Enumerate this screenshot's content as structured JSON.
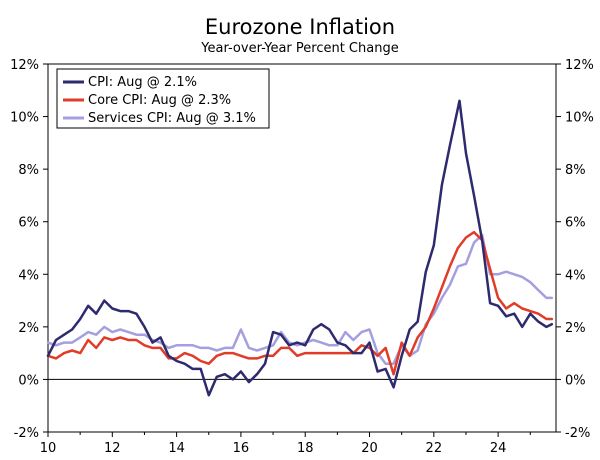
{
  "chart_data": {
    "type": "line",
    "title": "Eurozone Inflation",
    "subtitle": "Year-over-Year Percent Change",
    "xlabel": "",
    "ylabel": "",
    "xlim": [
      2010,
      2025.8
    ],
    "ylim": [
      -2,
      12
    ],
    "x_ticks": [
      2010,
      2012,
      2014,
      2016,
      2018,
      2020,
      2022,
      2024
    ],
    "x_tick_labels": [
      "10",
      "12",
      "14",
      "16",
      "18",
      "20",
      "22",
      "24"
    ],
    "y_ticks": [
      -2,
      0,
      2,
      4,
      6,
      8,
      10,
      12
    ],
    "y_tick_labels": [
      "-2%",
      "0%",
      "2%",
      "4%",
      "6%",
      "8%",
      "10%",
      "12%"
    ],
    "grid": false,
    "zero_line": true,
    "dual_y_axis": true,
    "legend": {
      "placement": "top-left",
      "entries": [
        "CPI: Aug @ 2.1%",
        "Core CPI: Aug @ 2.3%",
        "Services CPI: Aug @ 3.1%"
      ]
    },
    "series": [
      {
        "name": "CPI: Aug @ 2.1%",
        "color": "#2e2a6e",
        "points": [
          [
            2010.0,
            0.9
          ],
          [
            2010.25,
            1.5
          ],
          [
            2010.5,
            1.7
          ],
          [
            2010.75,
            1.9
          ],
          [
            2011.0,
            2.3
          ],
          [
            2011.25,
            2.8
          ],
          [
            2011.5,
            2.5
          ],
          [
            2011.75,
            3.0
          ],
          [
            2012.0,
            2.7
          ],
          [
            2012.25,
            2.6
          ],
          [
            2012.5,
            2.6
          ],
          [
            2012.75,
            2.5
          ],
          [
            2013.0,
            2.0
          ],
          [
            2013.25,
            1.4
          ],
          [
            2013.5,
            1.6
          ],
          [
            2013.75,
            0.9
          ],
          [
            2014.0,
            0.7
          ],
          [
            2014.25,
            0.6
          ],
          [
            2014.5,
            0.4
          ],
          [
            2014.75,
            0.4
          ],
          [
            2015.0,
            -0.6
          ],
          [
            2015.25,
            0.1
          ],
          [
            2015.5,
            0.2
          ],
          [
            2015.75,
            0.0
          ],
          [
            2016.0,
            0.3
          ],
          [
            2016.25,
            -0.1
          ],
          [
            2016.5,
            0.2
          ],
          [
            2016.75,
            0.6
          ],
          [
            2017.0,
            1.8
          ],
          [
            2017.25,
            1.7
          ],
          [
            2017.5,
            1.3
          ],
          [
            2017.75,
            1.4
          ],
          [
            2018.0,
            1.3
          ],
          [
            2018.25,
            1.9
          ],
          [
            2018.5,
            2.1
          ],
          [
            2018.75,
            1.9
          ],
          [
            2019.0,
            1.4
          ],
          [
            2019.25,
            1.3
          ],
          [
            2019.5,
            1.0
          ],
          [
            2019.75,
            1.0
          ],
          [
            2020.0,
            1.4
          ],
          [
            2020.25,
            0.3
          ],
          [
            2020.5,
            0.4
          ],
          [
            2020.75,
            -0.3
          ],
          [
            2021.0,
            0.9
          ],
          [
            2021.25,
            1.9
          ],
          [
            2021.5,
            2.2
          ],
          [
            2021.75,
            4.1
          ],
          [
            2022.0,
            5.1
          ],
          [
            2022.25,
            7.4
          ],
          [
            2022.5,
            8.9
          ],
          [
            2022.8,
            10.6
          ],
          [
            2023.0,
            8.6
          ],
          [
            2023.25,
            7.0
          ],
          [
            2023.5,
            5.3
          ],
          [
            2023.75,
            2.9
          ],
          [
            2024.0,
            2.8
          ],
          [
            2024.25,
            2.4
          ],
          [
            2024.5,
            2.5
          ],
          [
            2024.75,
            2.0
          ],
          [
            2025.0,
            2.5
          ],
          [
            2025.25,
            2.2
          ],
          [
            2025.5,
            2.0
          ],
          [
            2025.67,
            2.1
          ]
        ]
      },
      {
        "name": "Core CPI: Aug @ 2.3%",
        "color": "#e03c28",
        "points": [
          [
            2010.0,
            0.9
          ],
          [
            2010.25,
            0.8
          ],
          [
            2010.5,
            1.0
          ],
          [
            2010.75,
            1.1
          ],
          [
            2011.0,
            1.0
          ],
          [
            2011.25,
            1.5
          ],
          [
            2011.5,
            1.2
          ],
          [
            2011.75,
            1.6
          ],
          [
            2012.0,
            1.5
          ],
          [
            2012.25,
            1.6
          ],
          [
            2012.5,
            1.5
          ],
          [
            2012.75,
            1.5
          ],
          [
            2013.0,
            1.3
          ],
          [
            2013.25,
            1.2
          ],
          [
            2013.5,
            1.2
          ],
          [
            2013.75,
            0.8
          ],
          [
            2014.0,
            0.8
          ],
          [
            2014.25,
            1.0
          ],
          [
            2014.5,
            0.9
          ],
          [
            2014.75,
            0.7
          ],
          [
            2015.0,
            0.6
          ],
          [
            2015.25,
            0.9
          ],
          [
            2015.5,
            1.0
          ],
          [
            2015.75,
            1.0
          ],
          [
            2016.0,
            0.9
          ],
          [
            2016.25,
            0.8
          ],
          [
            2016.5,
            0.8
          ],
          [
            2016.75,
            0.9
          ],
          [
            2017.0,
            0.9
          ],
          [
            2017.25,
            1.2
          ],
          [
            2017.5,
            1.2
          ],
          [
            2017.75,
            0.9
          ],
          [
            2018.0,
            1.0
          ],
          [
            2018.25,
            1.0
          ],
          [
            2018.5,
            1.0
          ],
          [
            2018.75,
            1.0
          ],
          [
            2019.0,
            1.0
          ],
          [
            2019.25,
            1.0
          ],
          [
            2019.5,
            1.0
          ],
          [
            2019.75,
            1.3
          ],
          [
            2020.0,
            1.2
          ],
          [
            2020.25,
            0.9
          ],
          [
            2020.5,
            1.2
          ],
          [
            2020.75,
            0.2
          ],
          [
            2021.0,
            1.4
          ],
          [
            2021.25,
            0.9
          ],
          [
            2021.5,
            1.6
          ],
          [
            2021.75,
            2.0
          ],
          [
            2022.0,
            2.7
          ],
          [
            2022.25,
            3.5
          ],
          [
            2022.5,
            4.3
          ],
          [
            2022.75,
            5.0
          ],
          [
            2023.0,
            5.4
          ],
          [
            2023.25,
            5.6
          ],
          [
            2023.5,
            5.3
          ],
          [
            2023.75,
            4.2
          ],
          [
            2024.0,
            3.1
          ],
          [
            2024.25,
            2.7
          ],
          [
            2024.5,
            2.9
          ],
          [
            2024.75,
            2.7
          ],
          [
            2025.0,
            2.6
          ],
          [
            2025.25,
            2.5
          ],
          [
            2025.5,
            2.3
          ],
          [
            2025.67,
            2.3
          ]
        ]
      },
      {
        "name": "Services CPI: Aug @ 3.1%",
        "color": "#a49fe0",
        "points": [
          [
            2010.0,
            1.4
          ],
          [
            2010.25,
            1.3
          ],
          [
            2010.5,
            1.4
          ],
          [
            2010.75,
            1.4
          ],
          [
            2011.0,
            1.6
          ],
          [
            2011.25,
            1.8
          ],
          [
            2011.5,
            1.7
          ],
          [
            2011.75,
            2.0
          ],
          [
            2012.0,
            1.8
          ],
          [
            2012.25,
            1.9
          ],
          [
            2012.5,
            1.8
          ],
          [
            2012.75,
            1.7
          ],
          [
            2013.0,
            1.7
          ],
          [
            2013.25,
            1.5
          ],
          [
            2013.5,
            1.4
          ],
          [
            2013.75,
            1.2
          ],
          [
            2014.0,
            1.3
          ],
          [
            2014.25,
            1.3
          ],
          [
            2014.5,
            1.3
          ],
          [
            2014.75,
            1.2
          ],
          [
            2015.0,
            1.2
          ],
          [
            2015.25,
            1.1
          ],
          [
            2015.5,
            1.2
          ],
          [
            2015.75,
            1.2
          ],
          [
            2016.0,
            1.9
          ],
          [
            2016.25,
            1.2
          ],
          [
            2016.5,
            1.1
          ],
          [
            2016.75,
            1.2
          ],
          [
            2017.0,
            1.3
          ],
          [
            2017.25,
            1.8
          ],
          [
            2017.5,
            1.4
          ],
          [
            2017.75,
            1.3
          ],
          [
            2018.0,
            1.4
          ],
          [
            2018.25,
            1.5
          ],
          [
            2018.5,
            1.4
          ],
          [
            2018.75,
            1.3
          ],
          [
            2019.0,
            1.3
          ],
          [
            2019.25,
            1.8
          ],
          [
            2019.5,
            1.5
          ],
          [
            2019.75,
            1.8
          ],
          [
            2020.0,
            1.9
          ],
          [
            2020.25,
            1.0
          ],
          [
            2020.5,
            0.6
          ],
          [
            2020.75,
            0.6
          ],
          [
            2021.0,
            1.3
          ],
          [
            2021.25,
            0.9
          ],
          [
            2021.5,
            1.1
          ],
          [
            2021.75,
            2.1
          ],
          [
            2022.0,
            2.5
          ],
          [
            2022.25,
            3.1
          ],
          [
            2022.5,
            3.6
          ],
          [
            2022.75,
            4.3
          ],
          [
            2023.0,
            4.4
          ],
          [
            2023.25,
            5.2
          ],
          [
            2023.5,
            5.5
          ],
          [
            2023.75,
            4.0
          ],
          [
            2024.0,
            4.0
          ],
          [
            2024.25,
            4.1
          ],
          [
            2024.5,
            4.0
          ],
          [
            2024.75,
            3.9
          ],
          [
            2025.0,
            3.7
          ],
          [
            2025.25,
            3.4
          ],
          [
            2025.5,
            3.1
          ],
          [
            2025.67,
            3.1
          ]
        ]
      }
    ]
  }
}
